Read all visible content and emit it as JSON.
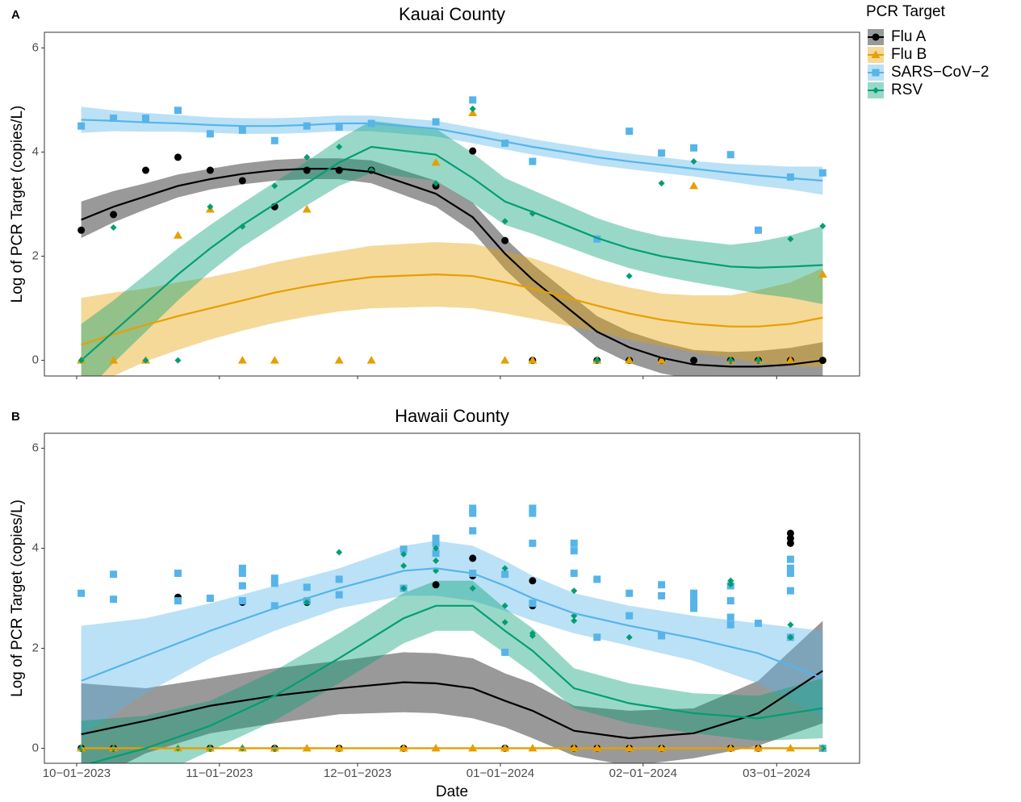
{
  "chart_data": [
    {
      "type": "scatter",
      "panel_label": "A",
      "title": "Kauai County",
      "ylabel": "Log of PCR Target (copies/L)",
      "legend_title": "PCR Target",
      "legend": "right",
      "xlim": [
        "2023-09-24",
        "2024-03-19"
      ],
      "ylim": [
        -0.3,
        6.3
      ],
      "yticks": [
        0,
        2,
        4,
        6
      ],
      "xticks": [
        "2023-10-01",
        "2023-11-01",
        "2023-12-01",
        "2024-01-01",
        "2024-02-01",
        "2024-03-01"
      ],
      "grid": false,
      "x": [
        "2023-10-02",
        "2023-10-09",
        "2023-10-16",
        "2023-10-23",
        "2023-10-30",
        "2023-11-06",
        "2023-11-13",
        "2023-11-20",
        "2023-11-27",
        "2023-12-04",
        "2023-12-18",
        "2023-12-26",
        "2024-01-02",
        "2024-01-08",
        "2024-01-22",
        "2024-01-29",
        "2024-02-05",
        "2024-02-12",
        "2024-02-20",
        "2024-02-26",
        "2024-03-04",
        "2024-03-11"
      ],
      "series": [
        {
          "name": "Flu A",
          "color": "#000000",
          "band_color": "#000000",
          "shape": "circle",
          "values": [
            2.5,
            2.8,
            3.65,
            3.9,
            3.65,
            3.45,
            2.95,
            3.65,
            3.65,
            3.65,
            3.35,
            4.02,
            2.3,
            0,
            0,
            0,
            0,
            0,
            0,
            0,
            0,
            0
          ],
          "fit": [
            2.7,
            2.95,
            3.15,
            3.35,
            3.48,
            3.58,
            3.65,
            3.68,
            3.68,
            3.62,
            3.2,
            2.75,
            2.05,
            1.55,
            0.55,
            0.25,
            0.05,
            -0.08,
            -0.12,
            -0.12,
            -0.08,
            0
          ],
          "fit_lower": [
            2.35,
            2.65,
            2.9,
            3.13,
            3.28,
            3.38,
            3.45,
            3.48,
            3.48,
            3.4,
            2.95,
            2.47,
            1.75,
            1.25,
            0.25,
            -0.05,
            -0.25,
            -0.36,
            -0.4,
            -0.42,
            -0.4,
            -0.35
          ],
          "fit_upper": [
            3.05,
            3.25,
            3.4,
            3.57,
            3.68,
            3.78,
            3.85,
            3.88,
            3.88,
            3.84,
            3.45,
            3.03,
            2.35,
            1.85,
            0.85,
            0.55,
            0.35,
            0.2,
            0.16,
            0.18,
            0.24,
            0.35
          ]
        },
        {
          "name": "Flu B",
          "color": "#E69F00",
          "band_color": "#E69F00",
          "shape": "triangle",
          "values": [
            0,
            0,
            0,
            2.4,
            2.9,
            0,
            0,
            2.9,
            0,
            0,
            3.8,
            4.75,
            0,
            0,
            0,
            0,
            0,
            3.35,
            0,
            0,
            0,
            1.65
          ],
          "fit": [
            0.3,
            0.5,
            0.68,
            0.85,
            1.0,
            1.15,
            1.3,
            1.42,
            1.52,
            1.6,
            1.65,
            1.62,
            1.5,
            1.38,
            1.05,
            0.9,
            0.78,
            0.7,
            0.65,
            0.65,
            0.7,
            0.82
          ],
          "fit_lower": [
            -0.6,
            -0.3,
            -0.02,
            0.2,
            0.4,
            0.57,
            0.72,
            0.84,
            0.94,
            1.0,
            1.03,
            1.0,
            0.9,
            0.8,
            0.55,
            0.4,
            0.28,
            0.15,
            0.05,
            -0.05,
            -0.1,
            -0.13
          ],
          "fit_upper": [
            1.2,
            1.3,
            1.38,
            1.5,
            1.6,
            1.73,
            1.88,
            2.0,
            2.1,
            2.2,
            2.27,
            2.24,
            2.1,
            1.96,
            1.55,
            1.4,
            1.28,
            1.25,
            1.25,
            1.35,
            1.5,
            1.77
          ]
        },
        {
          "name": "SARS−CoV−2",
          "color": "#56B4E9",
          "band_color": "#56B4E9",
          "shape": "square",
          "values": [
            4.5,
            4.65,
            4.65,
            4.8,
            4.35,
            4.42,
            4.22,
            4.5,
            4.48,
            4.55,
            4.58,
            5.0,
            4.17,
            3.82,
            2.33,
            4.4,
            3.98,
            4.08,
            3.95,
            2.5,
            3.52,
            3.6
          ],
          "fit": [
            4.62,
            4.6,
            4.57,
            4.55,
            4.52,
            4.5,
            4.5,
            4.52,
            4.55,
            4.55,
            4.45,
            4.32,
            4.2,
            4.1,
            3.9,
            3.82,
            3.75,
            3.68,
            3.6,
            3.55,
            3.5,
            3.45
          ],
          "fit_lower": [
            4.37,
            4.4,
            4.39,
            4.39,
            4.37,
            4.35,
            4.35,
            4.37,
            4.4,
            4.4,
            4.3,
            4.17,
            4.05,
            3.95,
            3.75,
            3.67,
            3.6,
            3.53,
            3.43,
            3.35,
            3.28,
            3.18
          ],
          "fit_upper": [
            4.87,
            4.8,
            4.75,
            4.71,
            4.67,
            4.65,
            4.65,
            4.67,
            4.7,
            4.7,
            4.6,
            4.47,
            4.35,
            4.25,
            4.05,
            3.97,
            3.9,
            3.83,
            3.77,
            3.75,
            3.72,
            3.72
          ]
        },
        {
          "name": "RSV",
          "color": "#009E73",
          "band_color": "#009E73",
          "shape": "diamond",
          "values": [
            0,
            2.55,
            0,
            0,
            2.95,
            2.57,
            3.35,
            3.9,
            4.1,
            3.65,
            3.4,
            4.83,
            2.67,
            2.82,
            0,
            1.62,
            3.4,
            3.82,
            0,
            0,
            2.33,
            2.58
          ],
          "fit": [
            0,
            0.55,
            1.1,
            1.65,
            2.15,
            2.6,
            3.0,
            3.4,
            3.8,
            4.1,
            3.95,
            3.5,
            3.05,
            2.85,
            2.35,
            2.15,
            2.0,
            1.9,
            1.8,
            1.78,
            1.8,
            1.83
          ],
          "fit_lower": [
            -0.7,
            -0.05,
            0.55,
            1.15,
            1.7,
            2.18,
            2.58,
            2.98,
            3.35,
            3.6,
            3.45,
            3.02,
            2.6,
            2.43,
            1.97,
            1.77,
            1.62,
            1.5,
            1.38,
            1.28,
            1.2,
            1.08
          ],
          "fit_upper": [
            0.7,
            1.15,
            1.65,
            2.15,
            2.6,
            3.02,
            3.42,
            3.82,
            4.25,
            4.6,
            4.45,
            3.98,
            3.5,
            3.27,
            2.73,
            2.53,
            2.38,
            2.3,
            2.22,
            2.28,
            2.4,
            2.58
          ]
        }
      ]
    },
    {
      "type": "scatter",
      "panel_label": "B",
      "title": "Hawaii County",
      "ylabel": "Log of PCR Target (copies/L)",
      "xlabel": "Date",
      "xlim": [
        "2023-09-24",
        "2024-03-19"
      ],
      "ylim": [
        -0.3,
        6.3
      ],
      "yticks": [
        0,
        2,
        4,
        6
      ],
      "xticks": [
        {
          "value": "2023-10-01",
          "label": "10−01−2023"
        },
        {
          "value": "2023-11-01",
          "label": "11−01−2023"
        },
        {
          "value": "2023-12-01",
          "label": "12−01−2023"
        },
        {
          "value": "2024-01-01",
          "label": "01−01−2024"
        },
        {
          "value": "2024-02-01",
          "label": "02−01−2024"
        },
        {
          "value": "2024-03-01",
          "label": "03−01−2024"
        }
      ],
      "grid": false,
      "fit_x": [
        "2023-10-02",
        "2023-10-16",
        "2023-10-30",
        "2023-11-13",
        "2023-11-27",
        "2023-12-11",
        "2023-12-18",
        "2023-12-26",
        "2024-01-02",
        "2024-01-08",
        "2024-01-17",
        "2024-01-29",
        "2024-02-12",
        "2024-02-26",
        "2024-03-11"
      ],
      "series": [
        {
          "name": "Flu A",
          "color": "#000000",
          "band_color": "#000000",
          "shape": "circle",
          "x": [
            "2023-10-02",
            "2023-10-09",
            "2023-10-23",
            "2023-10-30",
            "2023-11-06",
            "2023-11-13",
            "2023-11-20",
            "2023-11-27",
            "2023-12-11",
            "2023-12-18",
            "2023-12-26",
            "2023-12-26",
            "2024-01-02",
            "2024-01-08",
            "2024-01-08",
            "2024-01-17",
            "2024-01-22",
            "2024-01-29",
            "2024-02-05",
            "2024-02-20",
            "2024-02-26",
            "2024-03-04",
            "2024-03-04",
            "2024-03-04",
            "2024-03-11"
          ],
          "values": [
            0,
            0,
            3.02,
            0,
            2.92,
            0,
            2.92,
            0,
            0,
            3.27,
            3.8,
            3.45,
            0,
            3.35,
            2.85,
            0,
            0,
            0,
            0,
            0,
            0,
            4.3,
            4.2,
            4.1,
            0
          ],
          "fit": [
            0.28,
            0.55,
            0.85,
            1.05,
            1.2,
            1.32,
            1.3,
            1.2,
            0.95,
            0.75,
            0.35,
            0.2,
            0.3,
            0.7,
            1.55
          ],
          "fit_lower": [
            -0.75,
            -0.1,
            0.3,
            0.5,
            0.68,
            0.72,
            0.7,
            0.6,
            0.42,
            0.2,
            -0.15,
            -0.35,
            -0.2,
            0.05,
            0.5
          ],
          "fit_upper": [
            1.3,
            1.2,
            1.4,
            1.6,
            1.75,
            1.92,
            1.9,
            1.8,
            1.5,
            1.3,
            0.85,
            0.75,
            0.8,
            1.35,
            2.55
          ]
        },
        {
          "name": "Flu B",
          "color": "#E69F00",
          "band_color": "#E69F00",
          "shape": "triangle",
          "x": [
            "2023-10-02",
            "2023-10-09",
            "2023-10-23",
            "2023-10-30",
            "2023-11-06",
            "2023-11-13",
            "2023-11-20",
            "2023-11-27",
            "2023-12-11",
            "2023-12-18",
            "2023-12-26",
            "2024-01-02",
            "2024-01-08",
            "2024-01-17",
            "2024-01-22",
            "2024-01-29",
            "2024-02-05",
            "2024-02-20",
            "2024-02-26",
            "2024-03-04",
            "2024-03-11"
          ],
          "values": [
            0,
            0,
            0,
            0,
            0,
            0,
            0,
            0,
            0,
            0,
            0,
            0,
            0,
            0,
            0,
            0,
            0,
            0,
            0,
            0,
            0
          ],
          "fit": [
            0,
            0,
            0,
            0,
            0,
            0,
            0,
            0,
            0,
            0,
            0,
            0,
            0,
            0,
            0
          ],
          "fit_lower": [
            -0.02,
            -0.02,
            -0.02,
            -0.02,
            -0.02,
            -0.02,
            -0.02,
            -0.02,
            -0.02,
            -0.02,
            -0.02,
            -0.02,
            -0.02,
            -0.02,
            -0.02
          ],
          "fit_upper": [
            0.02,
            0.02,
            0.02,
            0.02,
            0.02,
            0.02,
            0.02,
            0.02,
            0.02,
            0.02,
            0.02,
            0.02,
            0.02,
            0.02,
            0.02
          ]
        },
        {
          "name": "SARS−CoV−2",
          "color": "#56B4E9",
          "band_color": "#56B4E9",
          "shape": "square",
          "x": [
            "2023-10-02",
            "2023-10-09",
            "2023-10-09",
            "2023-10-23",
            "2023-10-23",
            "2023-10-30",
            "2023-11-06",
            "2023-11-06",
            "2023-11-06",
            "2023-11-06",
            "2023-11-13",
            "2023-11-13",
            "2023-11-13",
            "2023-11-20",
            "2023-11-20",
            "2023-11-27",
            "2023-11-27",
            "2023-12-11",
            "2023-12-11",
            "2023-12-18",
            "2023-12-18",
            "2023-12-18",
            "2023-12-26",
            "2023-12-26",
            "2023-12-26",
            "2023-12-26",
            "2024-01-02",
            "2024-01-02",
            "2024-01-08",
            "2024-01-08",
            "2024-01-08",
            "2024-01-08",
            "2024-01-17",
            "2024-01-17",
            "2024-01-17",
            "2024-01-22",
            "2024-01-22",
            "2024-01-29",
            "2024-01-29",
            "2024-02-05",
            "2024-02-05",
            "2024-02-05",
            "2024-02-12",
            "2024-02-12",
            "2024-02-12",
            "2024-02-12",
            "2024-02-20",
            "2024-02-20",
            "2024-02-20",
            "2024-02-20",
            "2024-02-26",
            "2024-03-04",
            "2024-03-04",
            "2024-03-04",
            "2024-03-04",
            "2024-03-04",
            "2024-03-11"
          ],
          "values": [
            3.1,
            3.48,
            2.98,
            3.5,
            2.95,
            3.0,
            3.6,
            3.5,
            3.25,
            2.95,
            3.4,
            3.3,
            2.85,
            3.22,
            2.95,
            3.38,
            3.07,
            3.98,
            3.2,
            4.2,
            4.1,
            3.9,
            4.8,
            4.7,
            4.35,
            3.5,
            3.48,
            1.92,
            4.8,
            4.7,
            4.1,
            2.9,
            4.1,
            3.95,
            3.5,
            3.38,
            2.22,
            3.1,
            2.65,
            3.27,
            3.05,
            2.25,
            3.1,
            3.0,
            2.9,
            2.8,
            3.25,
            2.95,
            2.62,
            2.47,
            2.5,
            3.78,
            3.6,
            3.5,
            3.15,
            2.22,
            0
          ],
          "fit": [
            1.35,
            1.85,
            2.35,
            2.8,
            3.2,
            3.55,
            3.6,
            3.5,
            3.25,
            3.0,
            2.7,
            2.45,
            2.2,
            1.9,
            1.4
          ],
          "fit_lower": [
            0.25,
            1.1,
            1.8,
            2.35,
            2.8,
            3.05,
            3.05,
            2.95,
            2.75,
            2.55,
            2.3,
            2.05,
            1.75,
            1.3,
            0.6
          ],
          "fit_upper": [
            2.45,
            2.6,
            2.9,
            3.25,
            3.6,
            4.05,
            4.15,
            4.05,
            3.75,
            3.45,
            3.1,
            2.85,
            2.65,
            2.5,
            2.35
          ]
        },
        {
          "name": "RSV",
          "color": "#009E73",
          "band_color": "#009E73",
          "shape": "diamond",
          "x": [
            "2023-10-02",
            "2023-10-09",
            "2023-10-23",
            "2023-10-30",
            "2023-11-06",
            "2023-11-13",
            "2023-11-20",
            "2023-11-27",
            "2023-12-11",
            "2023-12-11",
            "2023-12-11",
            "2023-12-18",
            "2023-12-18",
            "2023-12-18",
            "2023-12-26",
            "2024-01-02",
            "2024-01-02",
            "2024-01-02",
            "2024-01-08",
            "2024-01-08",
            "2024-01-17",
            "2024-01-17",
            "2024-01-17",
            "2024-01-29",
            "2024-02-20",
            "2024-02-20",
            "2024-03-04",
            "2024-03-04",
            "2024-03-11"
          ],
          "values": [
            0,
            0,
            0,
            0,
            0,
            0,
            2.92,
            3.92,
            3.88,
            3.65,
            3.2,
            4.0,
            3.75,
            3.55,
            3.2,
            3.6,
            2.85,
            2.52,
            2.3,
            2.25,
            3.15,
            2.65,
            2.55,
            2.22,
            3.35,
            3.28,
            2.47,
            2.22,
            0
          ],
          "fit": [
            -0.35,
            0.0,
            0.45,
            1.05,
            1.8,
            2.6,
            2.85,
            2.85,
            2.35,
            1.95,
            1.2,
            0.9,
            0.7,
            0.6,
            0.8
          ],
          "fit_lower": [
            -1.25,
            -0.65,
            -0.05,
            0.55,
            1.3,
            2.1,
            2.35,
            2.35,
            1.9,
            1.5,
            0.8,
            0.5,
            0.3,
            0.15,
            0.2
          ],
          "fit_upper": [
            0.55,
            0.65,
            0.95,
            1.55,
            2.3,
            3.1,
            3.35,
            3.35,
            2.8,
            2.4,
            1.6,
            1.3,
            1.1,
            1.05,
            1.4
          ]
        }
      ]
    }
  ]
}
